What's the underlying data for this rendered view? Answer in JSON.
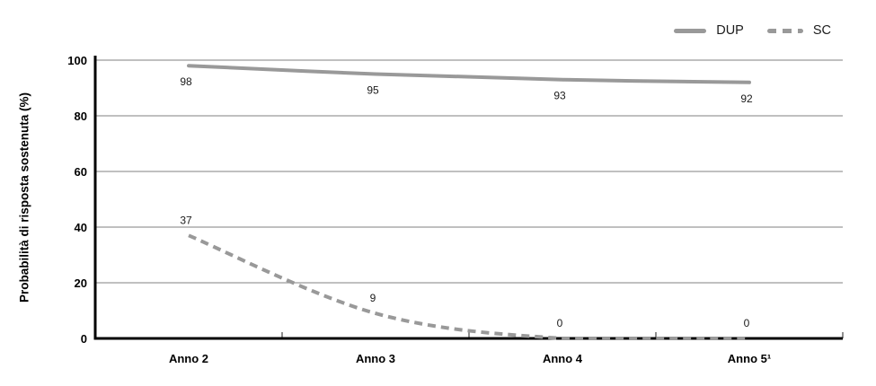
{
  "chart_data": {
    "type": "line",
    "title": "",
    "categories": [
      "Anno 2",
      "Anno 3",
      "Anno 4",
      "Anno 5¹"
    ],
    "series": [
      {
        "name": "DUP",
        "values": [
          98,
          95,
          93,
          92
        ],
        "style": "solid",
        "color": "#999999",
        "label_position": "below"
      },
      {
        "name": "SC",
        "values": [
          37,
          9,
          0,
          0
        ],
        "style": "dashed",
        "color": "#999999",
        "label_position": "above"
      }
    ],
    "xlabel": "",
    "ylabel": "Probabilità di risposta sostenuta (%)",
    "ylim": [
      0,
      100
    ],
    "yticks": [
      0,
      20,
      40,
      60,
      80,
      100
    ],
    "grid": true,
    "legend_position": "top-right",
    "data_labels": true
  },
  "colors": {
    "line_gray": "#999999",
    "grid": "#9a9a9a",
    "axis": "#000000",
    "tick": "#444444",
    "text": "#000000"
  }
}
